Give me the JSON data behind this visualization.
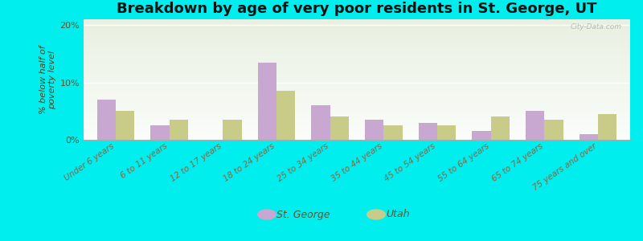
{
  "title": "Breakdown by age of very poor residents in St. George, UT",
  "ylabel": "% below half of\npoverty level",
  "categories": [
    "Under 6 years",
    "6 to 11 years",
    "12 to 17 years",
    "18 to 24 years",
    "25 to 34 years",
    "35 to 44 years",
    "45 to 54 years",
    "55 to 64 years",
    "65 to 74 years",
    "75 years and over"
  ],
  "st_george": [
    7.0,
    2.5,
    0.0,
    13.5,
    6.0,
    3.5,
    3.0,
    1.5,
    5.0,
    1.0
  ],
  "utah": [
    5.0,
    3.5,
    3.5,
    8.5,
    4.0,
    2.5,
    2.5,
    4.0,
    3.5,
    4.5
  ],
  "st_george_color": "#c8a8d0",
  "utah_color": "#c8cc88",
  "bg_color": "#00eeee",
  "ylim": [
    0,
    21
  ],
  "ytick_vals": [
    0,
    10,
    20
  ],
  "ytick_labels": [
    "0%",
    "10%",
    "20%"
  ],
  "bar_width": 0.35,
  "title_fontsize": 13,
  "ylabel_fontsize": 8,
  "xtick_fontsize": 7.5,
  "ytick_fontsize": 8,
  "legend_fontsize": 9,
  "watermark": "City-Data.com",
  "legend_label_1": "St. George",
  "legend_label_2": "Utah"
}
